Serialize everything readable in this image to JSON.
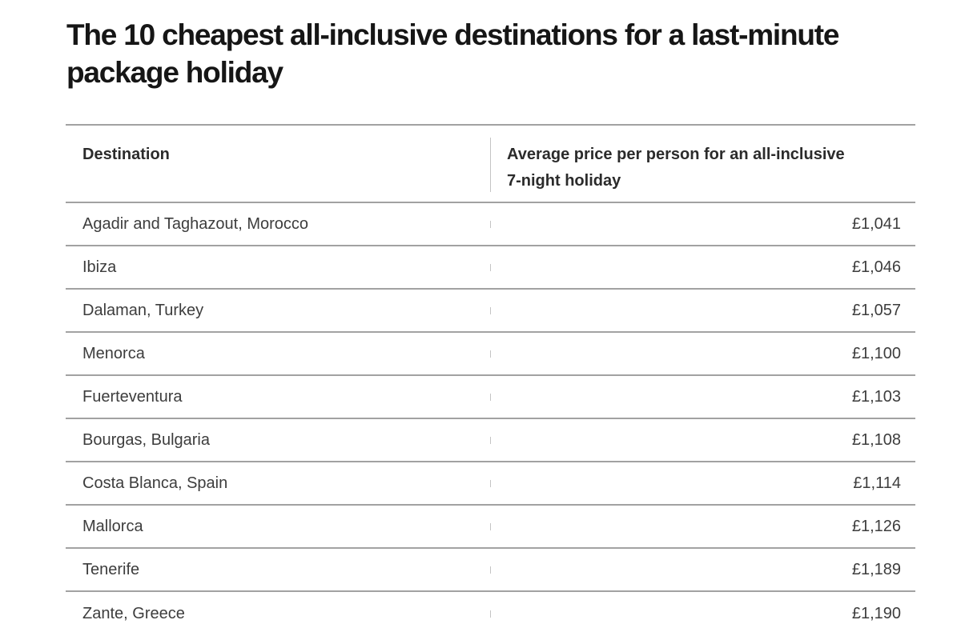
{
  "page": {
    "title": "The 10 cheapest all-inclusive destinations for a last-minute package holiday"
  },
  "table": {
    "headers": {
      "destination": "Destination",
      "price": "Average price per person for an all-inclusive 7-night holiday"
    },
    "rows": [
      {
        "destination": "Agadir and Taghazout, Morocco",
        "price": "£1,041"
      },
      {
        "destination": "Ibiza",
        "price": "£1,046"
      },
      {
        "destination": "Dalaman, Turkey",
        "price": "£1,057"
      },
      {
        "destination": "Menorca",
        "price": "£1,100"
      },
      {
        "destination": "Fuerteventura",
        "price": "£1,103"
      },
      {
        "destination": "Bourgas, Bulgaria",
        "price": "£1,108"
      },
      {
        "destination": "Costa Blanca, Spain",
        "price": "£1,114"
      },
      {
        "destination": "Mallorca",
        "price": "£1,126"
      },
      {
        "destination": "Tenerife",
        "price": "£1,189"
      },
      {
        "destination": "Zante, Greece",
        "price": "£1,190"
      }
    ]
  },
  "colors": {
    "title_text": "#161616",
    "header_text": "#2b2b2b",
    "body_text": "#3d3d3d",
    "row_border": "#a2a2a2",
    "column_divider": "#c4c4c4",
    "background": "#ffffff"
  },
  "chart_data": {
    "type": "table",
    "title": "The 10 cheapest all-inclusive destinations for a last-minute package holiday",
    "columns": [
      "Destination",
      "Average price per person for an all-inclusive 7-night holiday"
    ],
    "categories": [
      "Agadir and Taghazout, Morocco",
      "Ibiza",
      "Dalaman, Turkey",
      "Menorca",
      "Fuerteventura",
      "Bourgas, Bulgaria",
      "Costa Blanca, Spain",
      "Mallorca",
      "Tenerife",
      "Zante, Greece"
    ],
    "values": [
      1041,
      1046,
      1057,
      1100,
      1103,
      1108,
      1114,
      1126,
      1189,
      1190
    ],
    "currency": "GBP",
    "value_format": "£#,###"
  }
}
